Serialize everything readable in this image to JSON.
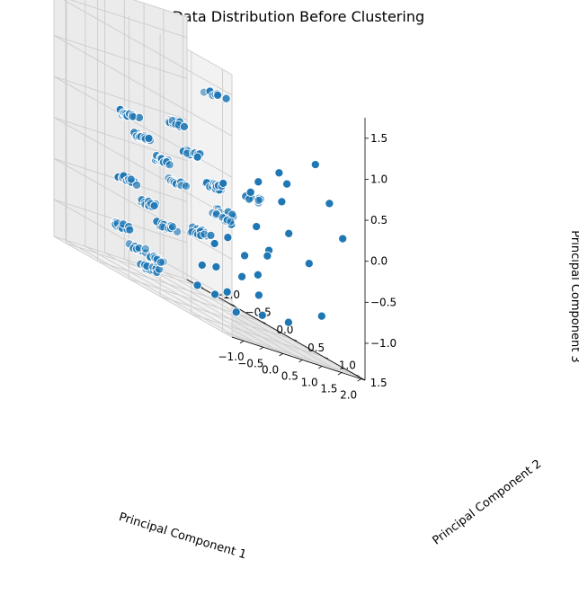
{
  "chart_data": {
    "type": "scatter",
    "projection": "3d",
    "title": "3D Data Distribution Before Clustering",
    "xlabel": "Principal Component 1",
    "ylabel": "Principal Component 2",
    "zlabel": "Principal Component 3",
    "xlim": [
      -1.3,
      2.1
    ],
    "ylim": [
      -1.2,
      1.65
    ],
    "zlim": [
      -1.45,
      1.75
    ],
    "xticks": [
      -1.0,
      -0.5,
      0.0,
      0.5,
      1.0,
      1.5,
      2.0
    ],
    "yticks": [
      -1.0,
      -0.5,
      0.0,
      0.5,
      1.0,
      1.5
    ],
    "zticks": [
      -1.0,
      -0.5,
      0.0,
      0.5,
      1.0,
      1.5
    ],
    "xtick_labels": [
      "−1.0",
      "−0.5",
      "0.0",
      "0.5",
      "1.0",
      "1.5",
      "2.0"
    ],
    "ytick_labels": [
      "−1.0",
      "−0.5",
      "0.0",
      "0.5",
      "1.0",
      "1.5"
    ],
    "ztick_labels": [
      "−1.0",
      "−0.5",
      "0.0",
      "0.5",
      "1.0",
      "1.5"
    ],
    "grid": true,
    "marker_color": "#1f77b4",
    "marker_edge_color": "#ffffff",
    "pane_colors": [
      "#f2f2f2",
      "#ebebeb",
      "#e6e6e6"
    ],
    "clusters": [
      {
        "x": -0.9,
        "y": -0.25,
        "z": 0.5,
        "count": 22
      },
      {
        "x": -0.6,
        "y": -0.2,
        "z": 0.3,
        "count": 18
      },
      {
        "x": -0.2,
        "y": -0.15,
        "z": 0.1,
        "count": 20
      },
      {
        "x": 0.1,
        "y": -0.1,
        "z": -0.1,
        "count": 16
      },
      {
        "x": -0.8,
        "y": -0.3,
        "z": -0.3,
        "count": 18
      },
      {
        "x": -0.4,
        "y": -0.25,
        "z": -0.5,
        "count": 18
      },
      {
        "x": 0.0,
        "y": -0.2,
        "z": -0.7,
        "count": 14
      },
      {
        "x": -0.95,
        "y": -0.35,
        "z": -0.9,
        "count": 18
      },
      {
        "x": -0.6,
        "y": -0.3,
        "z": -1.1,
        "count": 16
      },
      {
        "x": -0.2,
        "y": -0.35,
        "z": -1.3,
        "count": 14
      },
      {
        "x": 0.3,
        "y": -0.55,
        "z": -1.2,
        "count": 12
      },
      {
        "x": -0.7,
        "y": 0.35,
        "z": 0.7,
        "count": 16
      },
      {
        "x": -0.3,
        "y": 0.4,
        "z": 0.4,
        "count": 18
      },
      {
        "x": 0.15,
        "y": 0.45,
        "z": 0.1,
        "count": 18
      },
      {
        "x": 0.5,
        "y": 0.4,
        "z": -0.2,
        "count": 14
      },
      {
        "x": -0.5,
        "y": 0.9,
        "z": 1.3,
        "count": 8
      },
      {
        "x": -0.3,
        "y": 0.5,
        "z": -0.5,
        "count": 14
      },
      {
        "x": 0.35,
        "y": 0.1,
        "z": -0.6,
        "count": 12
      },
      {
        "x": 0.8,
        "y": 0.2,
        "z": -0.3,
        "count": 10
      },
      {
        "x": 0.3,
        "y": 1.0,
        "z": 0.2,
        "count": 8
      }
    ],
    "scattered_points": [
      [
        1.55,
        1.2,
        0.9
      ],
      [
        1.25,
        0.85,
        0.25
      ],
      [
        1.85,
        1.45,
        0.15
      ],
      [
        1.55,
        1.1,
        -0.35
      ],
      [
        1.95,
        1.05,
        -0.95
      ],
      [
        1.35,
        0.9,
        -0.1
      ],
      [
        1.0,
        0.6,
        -0.2
      ],
      [
        1.6,
        0.4,
        -0.55
      ],
      [
        1.2,
        0.5,
        -0.8
      ],
      [
        0.75,
        0.3,
        -0.5
      ],
      [
        1.35,
        0.15,
        -0.95
      ],
      [
        1.7,
        0.2,
        -1.1
      ],
      [
        1.05,
        -0.3,
        -1.05
      ],
      [
        0.85,
        0.05,
        -0.95
      ],
      [
        1.9,
        0.55,
        -1.25
      ],
      [
        1.25,
        -0.5,
        -1.35
      ],
      [
        0.9,
        0.0,
        -1.3
      ],
      [
        1.45,
        -0.15,
        -1.25
      ],
      [
        1.95,
        0.1,
        -1.35
      ],
      [
        1.1,
        0.9,
        0.6
      ],
      [
        0.55,
        0.35,
        0.15
      ],
      [
        0.6,
        0.45,
        -0.3
      ],
      [
        0.7,
        0.6,
        -0.6
      ],
      [
        1.25,
        0.35,
        0.15
      ],
      [
        1.7,
        0.65,
        0.45
      ],
      [
        1.75,
        1.3,
        0.5
      ],
      [
        1.05,
        -0.1,
        -0.7
      ],
      [
        1.4,
        0.55,
        -0.45
      ],
      [
        1.6,
        -0.1,
        -1.45
      ],
      [
        0.65,
        0.85,
        0.4
      ]
    ]
  }
}
